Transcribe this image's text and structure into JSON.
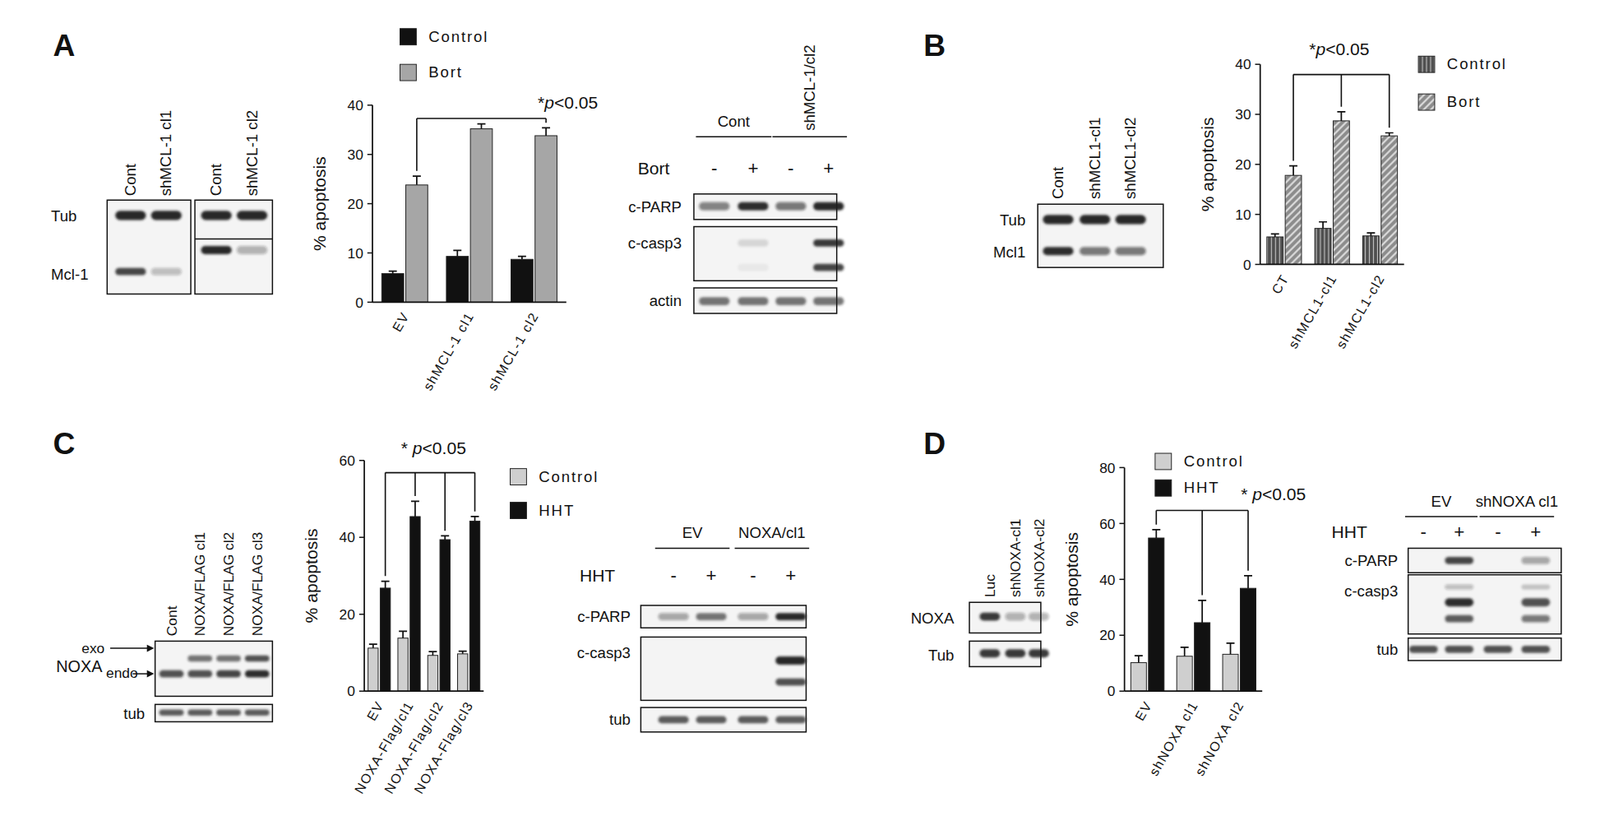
{
  "panels": [
    "A",
    "B",
    "C",
    "D"
  ],
  "chart_data": [
    {
      "type": "bar",
      "y_label": "% apoptosis",
      "annotation": "*p<0.05",
      "categories": [
        "EV",
        "shMCL-1 cl1",
        "shMCL-1 cl2"
      ],
      "series": [
        {
          "name": "Control",
          "color": "#111111",
          "values": [
            5.8,
            9.3,
            8.7
          ],
          "errors": [
            0.5,
            1.2,
            0.6
          ]
        },
        {
          "name": "Bort",
          "color": "#a6a6a6",
          "values": [
            23.8,
            35.2,
            33.8
          ],
          "errors": [
            1.8,
            1.0,
            1.6
          ]
        }
      ],
      "ylim": [
        0,
        40
      ],
      "yticks": [
        0,
        10,
        20,
        30,
        40
      ],
      "legend": "top"
    },
    {
      "type": "bar",
      "y_label": "% apoptosis",
      "annotation": "*p<0.05",
      "categories": [
        "CT",
        "shMCL1-cl1",
        "shMCL1-cl2"
      ],
      "series": [
        {
          "name": "Control",
          "color": "#4d4d4d",
          "values": [
            5.5,
            7.2,
            5.7
          ],
          "errors": [
            0.6,
            1.3,
            0.6
          ]
        },
        {
          "name": "Bort",
          "color": "#8c8c8c",
          "values": [
            17.8,
            28.7,
            25.7
          ],
          "errors": [
            1.9,
            1.8,
            0.6
          ]
        }
      ],
      "ylim": [
        0,
        40
      ],
      "yticks": [
        0,
        10,
        20,
        30,
        40
      ],
      "legend": "right"
    },
    {
      "type": "bar",
      "y_label": "% apoptosis",
      "annotation": "* p<0.05",
      "categories": [
        "EV",
        "NOXA-Flag/cl1",
        "NOXA-Flag/cl2",
        "NOXA-Flag/cl3"
      ],
      "series": [
        {
          "name": "Control",
          "color": "#cfcfcf",
          "values": [
            11.2,
            13.8,
            9.3,
            9.7
          ],
          "errors": [
            1.0,
            1.8,
            1.0,
            0.7
          ]
        },
        {
          "name": "HHT",
          "color": "#111111",
          "values": [
            26.8,
            45.4,
            39.4,
            44.2
          ],
          "errors": [
            1.8,
            4.0,
            1.0,
            1.2
          ]
        }
      ],
      "ylim": [
        0,
        60
      ],
      "yticks": [
        0,
        20,
        40,
        60
      ],
      "legend": "right"
    },
    {
      "type": "bar",
      "y_label": "% apoptosis",
      "annotation": "* p<0.05",
      "categories": [
        "EV",
        "shNOXA cl1",
        "shNOXA cl2"
      ],
      "series": [
        {
          "name": "Control",
          "color": "#cfcfcf",
          "values": [
            10.2,
            12.5,
            13.2
          ],
          "errors": [
            2.5,
            3.2,
            4.0
          ]
        },
        {
          "name": "HHT",
          "color": "#111111",
          "values": [
            54.8,
            24.5,
            36.8
          ],
          "errors": [
            3.0,
            8.0,
            4.5
          ]
        }
      ],
      "ylim": [
        0,
        80
      ],
      "yticks": [
        0,
        20,
        40,
        60,
        80
      ],
      "legend": "top-left"
    }
  ],
  "blots": [
    {
      "lanes": [
        "Cont",
        "shMCL-1 cl1"
      ],
      "rows": [
        "Tub",
        "Mcl-1"
      ]
    },
    {
      "lanes": [
        "Cont",
        "shMCL-1 cl2"
      ]
    },
    {
      "groups": [
        "Cont",
        "shMCL-1/cl2"
      ],
      "treatment": "Bort",
      "signs": [
        "-",
        "+",
        "-",
        "+"
      ],
      "rows": [
        "c-PARP",
        "c-casp3",
        "actin"
      ]
    },
    {
      "lanes": [
        "Cont",
        "shMCL1-cl1",
        "shMCL1-cl2"
      ],
      "rows": [
        "Tub",
        "Mcl1"
      ]
    },
    {
      "lanes": [
        "Cont",
        "NOXA/FLAG cl1",
        "NOXA/FLAG cl2",
        "NOXA/FLAG cl3"
      ],
      "rows": [
        "NOXA",
        "tub"
      ],
      "band_labels": [
        "exo",
        "endo"
      ]
    },
    {
      "groups": [
        "EV",
        "NOXA/cl1"
      ],
      "treatment": "HHT",
      "signs": [
        "-",
        "+",
        "-",
        "+"
      ],
      "rows": [
        "c-PARP",
        "c-casp3",
        "tub"
      ]
    },
    {
      "lanes": [
        "Luc",
        "shNOXA-cl1",
        "shNOXA-cl2"
      ],
      "rows": [
        "NOXA",
        "Tub"
      ]
    },
    {
      "groups": [
        "EV",
        "shNOXA cl1"
      ],
      "treatment": "HHT",
      "signs": [
        "-",
        "+",
        "-",
        "+"
      ],
      "rows": [
        "c-PARP",
        "c-casp3",
        "tub"
      ]
    }
  ]
}
